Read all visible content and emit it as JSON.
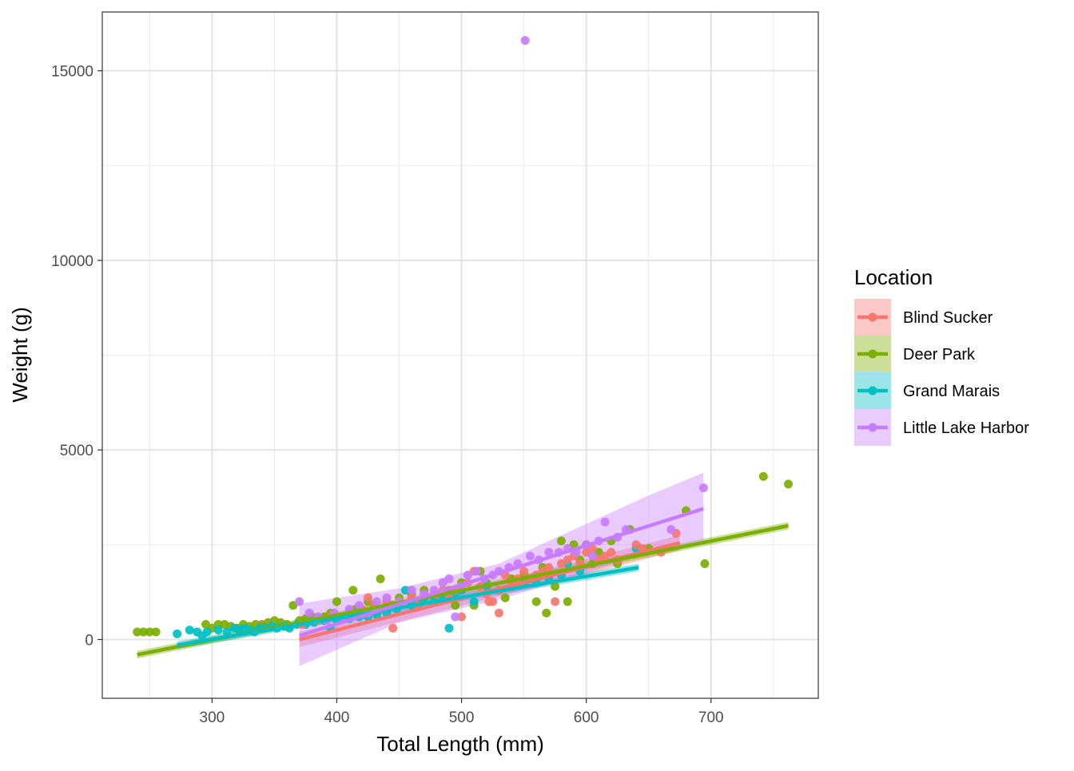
{
  "chart_data": {
    "type": "scatter",
    "title": "",
    "xlabel": "Total Length (mm)",
    "ylabel": "Weight (g)",
    "xlim": [
      212,
      786
    ],
    "ylim": [
      -1550,
      16550
    ],
    "x_ticks": [
      300,
      400,
      500,
      600,
      700
    ],
    "x_tick_labels": [
      "300",
      "400",
      "500",
      "600",
      "700"
    ],
    "y_ticks": [
      0,
      5000,
      10000,
      15000
    ],
    "y_tick_labels": [
      "0",
      "5000",
      "10000",
      "15000"
    ],
    "grid": true,
    "legend": {
      "title": "Location",
      "placement": "right"
    },
    "series": [
      {
        "name": "Blind Sucker",
        "color": "#F8766D",
        "points": [
          [
            372,
            400
          ],
          [
            385,
            500
          ],
          [
            395,
            600
          ],
          [
            410,
            700
          ],
          [
            420,
            800
          ],
          [
            425,
            1100
          ],
          [
            430,
            900
          ],
          [
            440,
            1000
          ],
          [
            445,
            300
          ],
          [
            450,
            1000
          ],
          [
            460,
            1100
          ],
          [
            465,
            900
          ],
          [
            470,
            1200
          ],
          [
            480,
            1200
          ],
          [
            485,
            1300
          ],
          [
            490,
            1100
          ],
          [
            495,
            1300
          ],
          [
            500,
            600
          ],
          [
            505,
            1500
          ],
          [
            510,
            1800
          ],
          [
            515,
            1400
          ],
          [
            520,
            1200
          ],
          [
            522,
            1000
          ],
          [
            525,
            1000
          ],
          [
            530,
            1300
          ],
          [
            530,
            700
          ],
          [
            535,
            1700
          ],
          [
            540,
            1500
          ],
          [
            545,
            1600
          ],
          [
            550,
            1800
          ],
          [
            555,
            1600
          ],
          [
            560,
            1700
          ],
          [
            565,
            1800
          ],
          [
            570,
            1900
          ],
          [
            575,
            1000
          ],
          [
            580,
            2000
          ],
          [
            585,
            2100
          ],
          [
            590,
            2200
          ],
          [
            595,
            2000
          ],
          [
            600,
            2300
          ],
          [
            605,
            2400
          ],
          [
            610,
            2100
          ],
          [
            615,
            2200
          ],
          [
            620,
            2300
          ],
          [
            625,
            2100
          ],
          [
            640,
            2500
          ],
          [
            645,
            2400
          ],
          [
            660,
            2300
          ],
          [
            672,
            2800
          ]
        ],
        "fit_line": [
          [
            370,
            0
          ],
          [
            675,
            2550
          ]
        ],
        "band": [
          [
            370,
            -200,
            200
          ],
          [
            675,
            2350,
            2750
          ]
        ]
      },
      {
        "name": "Deer Park",
        "color": "#7CAE00",
        "points": [
          [
            240,
            200
          ],
          [
            245,
            200
          ],
          [
            250,
            200
          ],
          [
            255,
            200
          ],
          [
            295,
            400
          ],
          [
            300,
            300
          ],
          [
            305,
            400
          ],
          [
            310,
            400
          ],
          [
            315,
            350
          ],
          [
            320,
            300
          ],
          [
            325,
            400
          ],
          [
            330,
            350
          ],
          [
            335,
            400
          ],
          [
            340,
            400
          ],
          [
            345,
            450
          ],
          [
            350,
            500
          ],
          [
            355,
            450
          ],
          [
            360,
            400
          ],
          [
            365,
            900
          ],
          [
            370,
            500
          ],
          [
            375,
            550
          ],
          [
            380,
            600
          ],
          [
            385,
            550
          ],
          [
            390,
            600
          ],
          [
            395,
            700
          ],
          [
            400,
            1000
          ],
          [
            405,
            600
          ],
          [
            410,
            700
          ],
          [
            413,
            1300
          ],
          [
            415,
            800
          ],
          [
            420,
            800
          ],
          [
            425,
            1000
          ],
          [
            430,
            900
          ],
          [
            435,
            1600
          ],
          [
            440,
            1000
          ],
          [
            445,
            900
          ],
          [
            450,
            1100
          ],
          [
            460,
            1200
          ],
          [
            470,
            1300
          ],
          [
            480,
            1200
          ],
          [
            490,
            1300
          ],
          [
            495,
            900
          ],
          [
            500,
            1500
          ],
          [
            510,
            900
          ],
          [
            515,
            1800
          ],
          [
            520,
            1500
          ],
          [
            530,
            1300
          ],
          [
            535,
            1100
          ],
          [
            540,
            1600
          ],
          [
            550,
            1700
          ],
          [
            560,
            1000
          ],
          [
            565,
            1900
          ],
          [
            568,
            700
          ],
          [
            575,
            1400
          ],
          [
            580,
            2600
          ],
          [
            585,
            1000
          ],
          [
            590,
            2500
          ],
          [
            595,
            2100
          ],
          [
            600,
            2500
          ],
          [
            605,
            2000
          ],
          [
            610,
            2300
          ],
          [
            620,
            2600
          ],
          [
            625,
            2000
          ],
          [
            635,
            2900
          ],
          [
            650,
            2400
          ],
          [
            680,
            3400
          ],
          [
            695,
            2000
          ],
          [
            742,
            4300
          ],
          [
            762,
            4100
          ]
        ],
        "fit_line": [
          [
            240,
            -400
          ],
          [
            762,
            3000
          ]
        ],
        "band": [
          [
            240,
            -500,
            -300
          ],
          [
            762,
            2900,
            3100
          ]
        ]
      },
      {
        "name": "Grand Marais",
        "color": "#00BFC4",
        "points": [
          [
            272,
            150
          ],
          [
            282,
            250
          ],
          [
            288,
            200
          ],
          [
            292,
            100
          ],
          [
            296,
            200
          ],
          [
            305,
            250
          ],
          [
            312,
            200
          ],
          [
            318,
            300
          ],
          [
            322,
            250
          ],
          [
            326,
            300
          ],
          [
            330,
            250
          ],
          [
            334,
            200
          ],
          [
            338,
            300
          ],
          [
            342,
            300
          ],
          [
            348,
            350
          ],
          [
            352,
            300
          ],
          [
            358,
            350
          ],
          [
            362,
            300
          ],
          [
            368,
            400
          ],
          [
            375,
            400
          ],
          [
            382,
            450
          ],
          [
            390,
            500
          ],
          [
            395,
            300
          ],
          [
            400,
            500
          ],
          [
            410,
            550
          ],
          [
            418,
            600
          ],
          [
            425,
            600
          ],
          [
            432,
            650
          ],
          [
            440,
            700
          ],
          [
            448,
            800
          ],
          [
            455,
            1300
          ],
          [
            460,
            900
          ],
          [
            465,
            1000
          ],
          [
            470,
            1100
          ],
          [
            478,
            1000
          ],
          [
            485,
            1100
          ],
          [
            490,
            300
          ],
          [
            495,
            1200
          ],
          [
            500,
            1300
          ],
          [
            510,
            1000
          ],
          [
            520,
            1400
          ],
          [
            530,
            1300
          ],
          [
            540,
            1400
          ],
          [
            550,
            1500
          ],
          [
            560,
            1500
          ],
          [
            570,
            1600
          ],
          [
            580,
            1700
          ],
          [
            585,
            2000
          ],
          [
            595,
            1800
          ],
          [
            640,
            2400
          ]
        ],
        "fit_line": [
          [
            272,
            -150
          ],
          [
            642,
            1900
          ]
        ],
        "band": [
          [
            272,
            -250,
            -50
          ],
          [
            642,
            1800,
            2000
          ]
        ]
      },
      {
        "name": "Little Lake Harbor",
        "color": "#C77CFF",
        "points": [
          [
            370,
            1000
          ],
          [
            378,
            700
          ],
          [
            385,
            600
          ],
          [
            392,
            500
          ],
          [
            398,
            700
          ],
          [
            405,
            600
          ],
          [
            410,
            800
          ],
          [
            418,
            900
          ],
          [
            425,
            700
          ],
          [
            432,
            1000
          ],
          [
            440,
            1100
          ],
          [
            450,
            1000
          ],
          [
            460,
            1300
          ],
          [
            470,
            1200
          ],
          [
            478,
            1300
          ],
          [
            485,
            1500
          ],
          [
            490,
            1600
          ],
          [
            495,
            600
          ],
          [
            500,
            1400
          ],
          [
            505,
            1700
          ],
          [
            512,
            1800
          ],
          [
            518,
            1600
          ],
          [
            525,
            1700
          ],
          [
            530,
            1800
          ],
          [
            538,
            1900
          ],
          [
            545,
            2000
          ],
          [
            551,
            15800
          ],
          [
            555,
            2200
          ],
          [
            562,
            2100
          ],
          [
            570,
            2300
          ],
          [
            578,
            2300
          ],
          [
            585,
            2400
          ],
          [
            592,
            2300
          ],
          [
            600,
            2500
          ],
          [
            605,
            2200
          ],
          [
            610,
            2600
          ],
          [
            615,
            3100
          ],
          [
            625,
            2700
          ],
          [
            632,
            2900
          ],
          [
            668,
            2900
          ],
          [
            694,
            4000
          ]
        ],
        "fit_line": [
          [
            370,
            100
          ],
          [
            694,
            3450
          ]
        ],
        "band": [
          [
            370,
            -700,
            950
          ],
          [
            450,
            450,
            1350
          ],
          [
            530,
            1050,
            2000
          ],
          [
            560,
            1350,
            2450
          ],
          [
            600,
            1750,
            3050
          ],
          [
            650,
            2300,
            3800
          ],
          [
            694,
            2600,
            4400
          ]
        ]
      }
    ]
  }
}
